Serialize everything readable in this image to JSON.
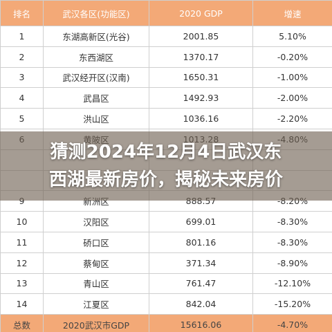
{
  "table": {
    "header": [
      "排名",
      "武汉各区(功能区)",
      "2020 GDP",
      "增速"
    ],
    "rows": [
      [
        "1",
        "东湖高新区(光谷)",
        "2001.85",
        "5.10%"
      ],
      [
        "2",
        "东西湖区",
        "1370.17",
        "-0.20%"
      ],
      [
        "3",
        "武汉经开区(汉南)",
        "1650.31",
        "-1.00%"
      ],
      [
        "4",
        "武昌区",
        "1492.93",
        "-2.00%"
      ],
      [
        "5",
        "洪山区",
        "1036.16",
        "-2.20%"
      ],
      [
        "6",
        "黄陂区",
        "1013.28",
        "-4.80%"
      ],
      [
        "9",
        "新洲区",
        "888.57",
        "-8.20%"
      ],
      [
        "10",
        "汉阳区",
        "699.01",
        "-8.30%"
      ],
      [
        "11",
        "硚口区",
        "801.16",
        "-8.30%"
      ],
      [
        "12",
        "蔡甸区",
        "371.34",
        "-8.90%"
      ],
      [
        "13",
        "青山区",
        "761.47",
        "-12.10%"
      ],
      [
        "14",
        "江夏区",
        "842.04",
        "-15.20%"
      ]
    ],
    "total": [
      "总数",
      "2020武汉市GDP",
      "15616.06",
      "-4.70%"
    ]
  },
  "overlay_title": [
    "猜测2024年12月4日武汉东",
    "西湖最新房价，揭秘未来房价"
  ]
}
